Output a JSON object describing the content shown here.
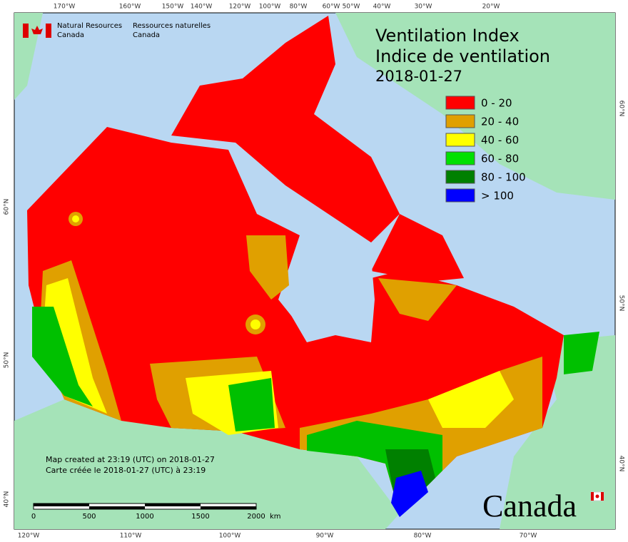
{
  "header": {
    "agency_en": [
      "Natural Resources",
      "Canada"
    ],
    "agency_fr": [
      "Ressources naturelles",
      "Canada"
    ]
  },
  "title": {
    "lines": [
      "Ventilation Index",
      "Indice de ventilation",
      "2018-01-27"
    ]
  },
  "legend": [
    {
      "label": "0 - 20",
      "color": "#ff0000"
    },
    {
      "label": "20 - 40",
      "color": "#e0a000"
    },
    {
      "label": "40 - 60",
      "color": "#ffff00"
    },
    {
      "label": "60 - 80",
      "color": "#00e000"
    },
    {
      "label": "80 - 100",
      "color": "#008000"
    },
    {
      "label": "> 100",
      "color": "#0000ff"
    }
  ],
  "graticule": {
    "top": [
      "170°W",
      "160°W",
      "150°W",
      "140°W",
      "120°W",
      "100°W",
      "80°W",
      "60°W",
      "50°W",
      "40°W",
      "30°W",
      "20°W"
    ],
    "bottom": [
      "120°W",
      "110°W",
      "100°W",
      "90°W",
      "80°W",
      "70°W"
    ],
    "left": [
      "60°N",
      "50°N",
      "40°N"
    ],
    "right": [
      "60°N",
      "50°N",
      "40°N"
    ]
  },
  "footer": {
    "note": [
      "Map created at 23:19 (UTC) on 2018-01-27",
      "Carte créée le 2018-01-27 (UTC) à 23:19"
    ],
    "scale": [
      "0",
      "500",
      "1000",
      "1500",
      "2000",
      "km"
    ],
    "wordmark": "Canada"
  }
}
